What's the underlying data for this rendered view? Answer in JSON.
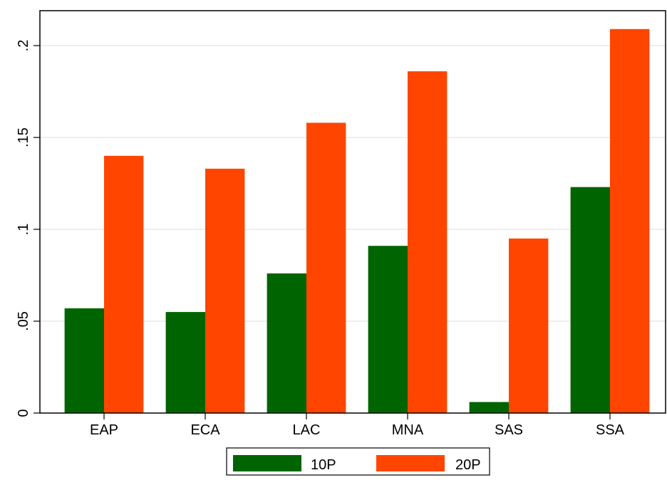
{
  "chart_data": {
    "type": "bar",
    "categories": [
      "EAP",
      "ECA",
      "LAC",
      "MNA",
      "SAS",
      "SSA"
    ],
    "series": [
      {
        "name": "10P",
        "values": [
          0.057,
          0.055,
          0.076,
          0.091,
          0.006,
          0.123
        ],
        "color": "#006400"
      },
      {
        "name": "20P",
        "values": [
          0.14,
          0.133,
          0.158,
          0.186,
          0.095,
          0.209
        ],
        "color": "#FF4500"
      }
    ],
    "yticks": [
      0,
      0.05,
      0.1,
      0.15,
      0.2
    ],
    "ytick_labels": [
      "0",
      ".05",
      ".1",
      ".15",
      ".2"
    ],
    "ylim": [
      0,
      0.219
    ],
    "grid": true,
    "legend_position": "bottom-center"
  }
}
